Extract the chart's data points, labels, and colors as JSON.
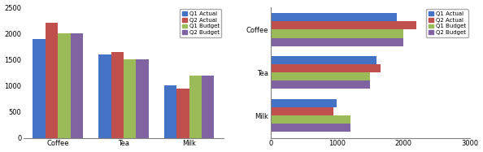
{
  "categories": [
    "Coffee",
    "Tea",
    "Milk"
  ],
  "series": {
    "Q1 Actual": [
      1900,
      1600,
      1000
    ],
    "Q2 Actual": [
      2200,
      1650,
      950
    ],
    "Q1 Budget": [
      2000,
      1500,
      1200
    ],
    "Q2 Budget": [
      2000,
      1500,
      1200
    ]
  },
  "colors": {
    "Q1 Actual": "#4472C4",
    "Q2 Actual": "#C0504D",
    "Q1 Budget": "#9BBB59",
    "Q2 Budget": "#8064A2"
  },
  "vertical_ylim": [
    0,
    2500
  ],
  "vertical_yticks": [
    0,
    500,
    1000,
    1500,
    2000,
    2500
  ],
  "horizontal_xlim": [
    0,
    3000
  ],
  "horizontal_xticks": [
    0,
    1000,
    2000,
    3000
  ],
  "background_color": "#FFFFFF",
  "plot_bg_color": "#FFFFFF",
  "legend_labels": [
    "Q1 Actual",
    "Q2 Actual",
    "Q1 Budget",
    "Q2 Budget"
  ]
}
